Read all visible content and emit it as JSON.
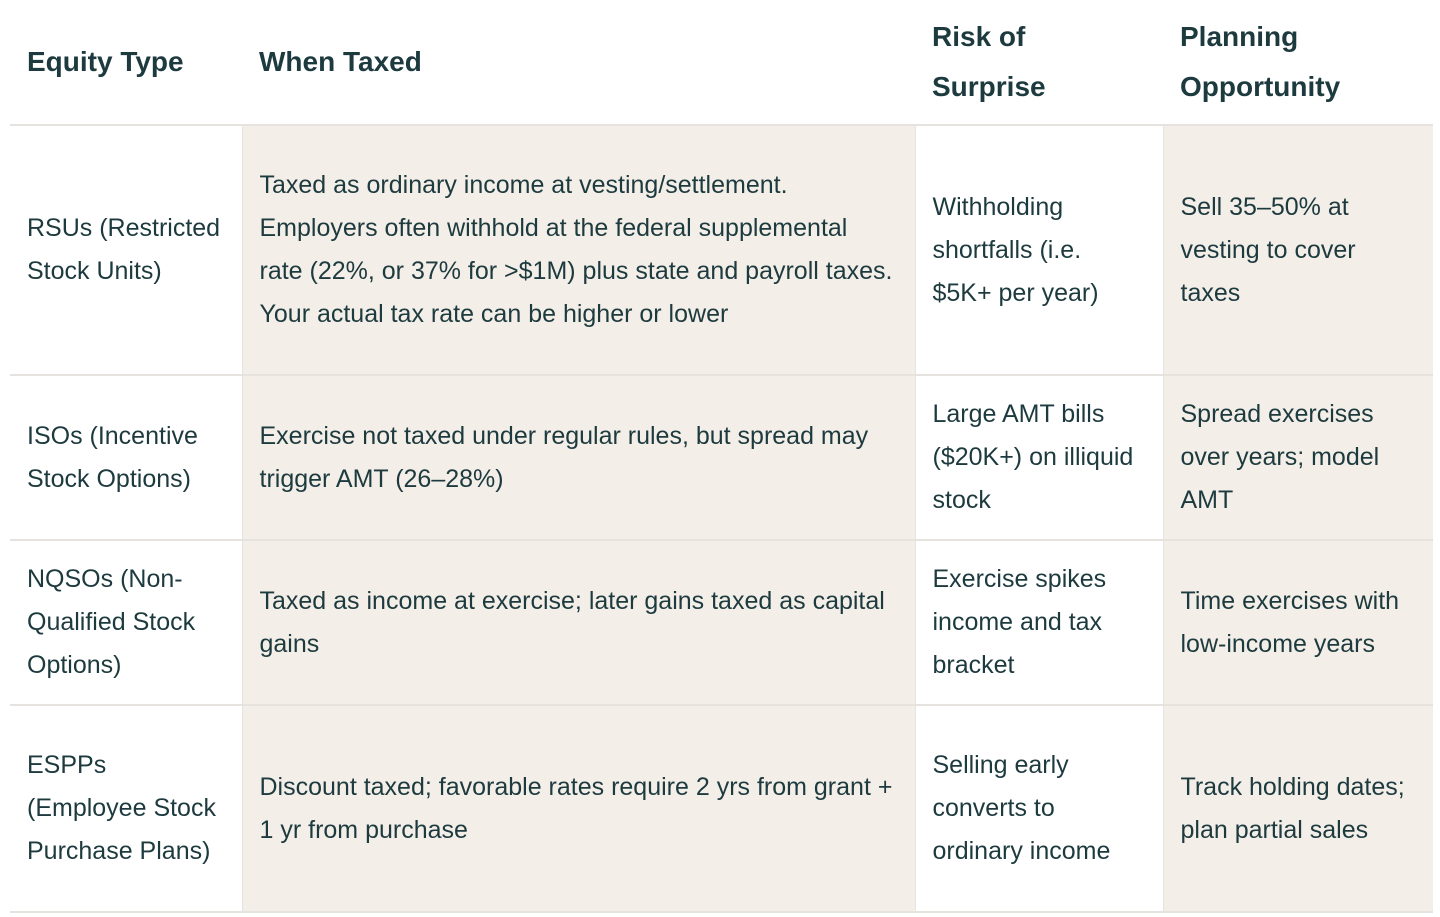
{
  "table": {
    "headers": [
      "Equity Type",
      "When Taxed",
      "Risk of Surprise",
      "Planning Opportunity"
    ],
    "rows": [
      [
        "RSUs (Restricted Stock Units)",
        "Taxed as ordinary income at vesting/settlement. Employers often withhold at the federal supplemental rate (22%, or 37% for >$1M) plus state and payroll taxes. Your actual tax rate can be higher or lower",
        "Withholding shortfalls (i.e. $5K+ per year)",
        "Sell 35–50% at vesting to cover taxes"
      ],
      [
        "ISOs (Incentive Stock Options)",
        "Exercise not taxed under regular rules, but spread may trigger AMT (26–28%)",
        "Large AMT bills ($20K+) on illiquid stock",
        "Spread exercises over years; model AMT"
      ],
      [
        "NQSOs (Non-Qualified Stock Options)",
        "Taxed as income at exercise; later gains taxed as capital gains",
        "Exercise spikes income and tax bracket",
        "Time exercises with low-income years"
      ],
      [
        "ESPPs (Employee Stock Purchase Plans)",
        "Discount taxed; favorable rates require 2 yrs from grant + 1 yr from purchase",
        "Selling early converts to ordinary income",
        "Track holding dates; plan partial sales"
      ]
    ]
  }
}
